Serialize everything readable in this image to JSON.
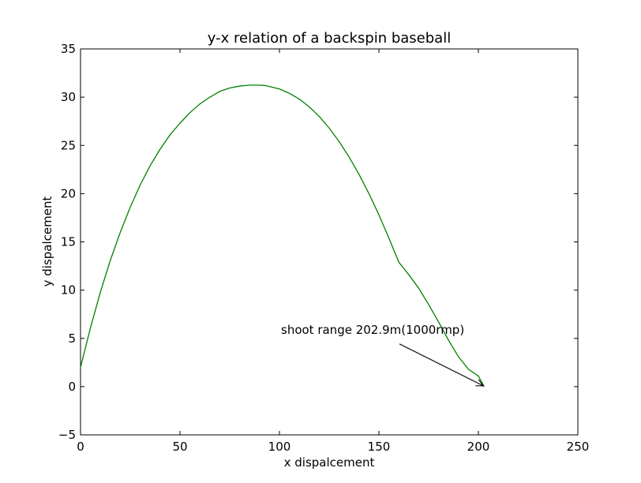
{
  "chart_data": {
    "type": "line",
    "title": "y-x relation of a backspin baseball",
    "xlabel": "x dispalcement",
    "ylabel": "y dispalcement",
    "xlim": [
      0,
      250
    ],
    "ylim": [
      -5,
      35
    ],
    "xticks": [
      0,
      50,
      100,
      150,
      200,
      250
    ],
    "yticks": [
      -5,
      0,
      5,
      10,
      15,
      20,
      25,
      30,
      35
    ],
    "xtick_labels": [
      "0",
      "50",
      "100",
      "150",
      "200",
      "250"
    ],
    "ytick_labels": [
      "−5",
      "0",
      "5",
      "10",
      "15",
      "20",
      "25",
      "30",
      "35"
    ],
    "grid": false,
    "series": [
      {
        "color": "#008000",
        "x": [
          0,
          5,
          10,
          15,
          20,
          25,
          30,
          35,
          40,
          45,
          50,
          55,
          60,
          65,
          70,
          75,
          80,
          85,
          90,
          93,
          95,
          100,
          105,
          110,
          115,
          120,
          125,
          130,
          135,
          140,
          145,
          150,
          155,
          160,
          165,
          170,
          175,
          180,
          185,
          190,
          195,
          200,
          202.9
        ],
        "y": [
          2.0,
          6.1,
          9.8,
          13.1,
          16.0,
          18.6,
          20.9,
          22.9,
          24.6,
          26.1,
          27.3,
          28.4,
          29.3,
          30.0,
          30.6,
          30.95,
          31.15,
          31.25,
          31.25,
          31.2,
          31.1,
          30.85,
          30.4,
          29.8,
          29.0,
          28.0,
          26.8,
          25.4,
          23.8,
          22.0,
          20.0,
          17.8,
          15.4,
          12.9,
          11.6,
          10.2,
          8.5,
          6.7,
          4.8,
          3.1,
          1.8,
          1.1,
          0.0
        ]
      }
    ],
    "annotation": {
      "text": "shoot range 202.9m(1000rmp)",
      "xy": [
        202.9,
        0
      ],
      "xytext": [
        100,
        5
      ]
    }
  }
}
